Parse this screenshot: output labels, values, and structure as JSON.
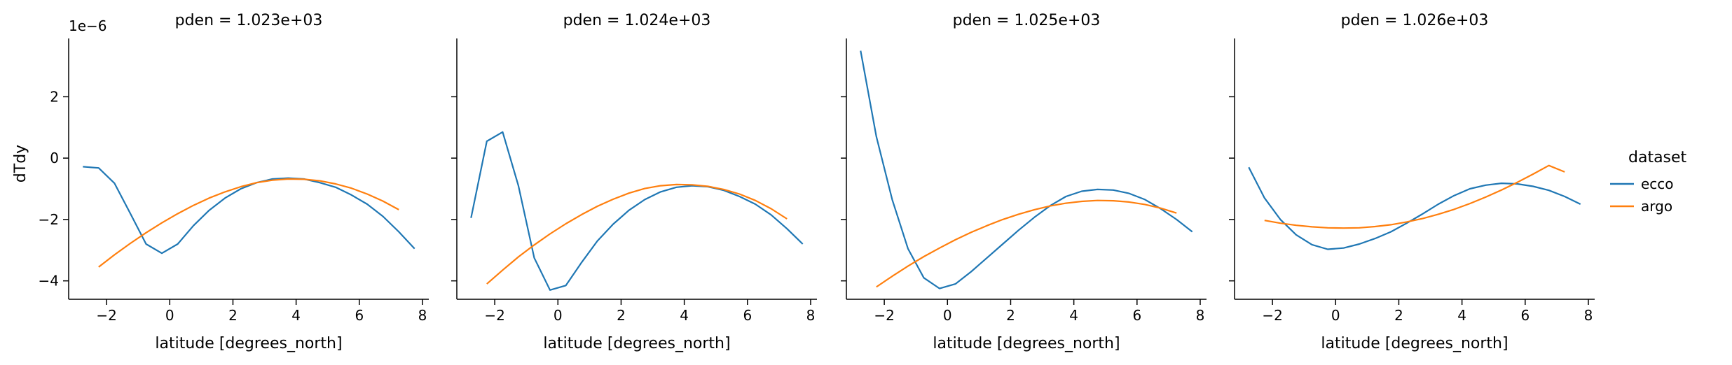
{
  "chart_data": {
    "type": "line",
    "ylabel": "dTdy",
    "y_offset_label": "1e−6",
    "ylim": [
      -4.6,
      3.9
    ],
    "yticks": [
      -4,
      -2,
      0,
      2
    ],
    "ytick_labels": [
      "−4",
      "−2",
      "0",
      "2"
    ],
    "xlim": [
      -3.2,
      8.2
    ],
    "xticks": [
      -2,
      0,
      2,
      4,
      6,
      8
    ],
    "xtick_labels": [
      "−2",
      "0",
      "2",
      "4",
      "6",
      "8"
    ],
    "legend": {
      "title": "dataset",
      "placement": "right",
      "entries": [
        {
          "name": "ecco",
          "color": "#1f77b4"
        },
        {
          "name": "argo",
          "color": "#ff7f0e"
        }
      ]
    },
    "panels": [
      {
        "title": "pden = 1.023e+03",
        "xlabel": "latitude [degrees_north]",
        "series": [
          {
            "name": "ecco",
            "color": "#1f77b4",
            "x": [
              -2.75,
              -2.25,
              -1.75,
              -1.25,
              -0.75,
              -0.25,
              0.25,
              0.75,
              1.25,
              1.75,
              2.25,
              2.75,
              3.25,
              3.75,
              4.25,
              4.75,
              5.25,
              5.75,
              6.25,
              6.75,
              7.25,
              7.75
            ],
            "y": [
              -0.28,
              -0.32,
              -0.82,
              -1.8,
              -2.8,
              -3.1,
              -2.8,
              -2.2,
              -1.7,
              -1.3,
              -1.0,
              -0.8,
              -0.68,
              -0.65,
              -0.68,
              -0.8,
              -0.95,
              -1.2,
              -1.5,
              -1.9,
              -2.4,
              -2.95
            ]
          },
          {
            "name": "argo",
            "color": "#ff7f0e",
            "x": [
              -2.25,
              -1.75,
              -1.25,
              -0.75,
              -0.25,
              0.25,
              0.75,
              1.25,
              1.75,
              2.25,
              2.75,
              3.25,
              3.75,
              4.25,
              4.75,
              5.25,
              5.75,
              6.25,
              6.75,
              7.25
            ],
            "y": [
              -3.55,
              -3.15,
              -2.78,
              -2.43,
              -2.11,
              -1.81,
              -1.54,
              -1.3,
              -1.1,
              -0.93,
              -0.8,
              -0.72,
              -0.68,
              -0.69,
              -0.74,
              -0.84,
              -0.98,
              -1.17,
              -1.4,
              -1.68
            ]
          }
        ]
      },
      {
        "title": "pden = 1.024e+03",
        "xlabel": "latitude [degrees_north]",
        "series": [
          {
            "name": "ecco",
            "color": "#1f77b4",
            "x": [
              -2.75,
              -2.25,
              -1.75,
              -1.25,
              -0.75,
              -0.25,
              0.25,
              0.75,
              1.25,
              1.75,
              2.25,
              2.75,
              3.25,
              3.75,
              4.25,
              4.75,
              5.25,
              5.75,
              6.25,
              6.75,
              7.25,
              7.75
            ],
            "y": [
              -1.95,
              0.55,
              0.85,
              -0.9,
              -3.25,
              -4.3,
              -4.15,
              -3.4,
              -2.7,
              -2.15,
              -1.7,
              -1.35,
              -1.1,
              -0.95,
              -0.9,
              -0.93,
              -1.05,
              -1.25,
              -1.5,
              -1.85,
              -2.3,
              -2.8
            ]
          },
          {
            "name": "argo",
            "color": "#ff7f0e",
            "x": [
              -2.25,
              -1.75,
              -1.25,
              -0.75,
              -0.25,
              0.25,
              0.75,
              1.25,
              1.75,
              2.25,
              2.75,
              3.25,
              3.75,
              4.25,
              4.75,
              5.25,
              5.75,
              6.25,
              6.75,
              7.25
            ],
            "y": [
              -4.1,
              -3.65,
              -3.22,
              -2.83,
              -2.47,
              -2.14,
              -1.84,
              -1.57,
              -1.34,
              -1.14,
              -0.99,
              -0.9,
              -0.86,
              -0.87,
              -0.92,
              -1.02,
              -1.17,
              -1.38,
              -1.65,
              -1.98
            ]
          }
        ]
      },
      {
        "title": "pden = 1.025e+03",
        "xlabel": "latitude [degrees_north]",
        "series": [
          {
            "name": "ecco",
            "color": "#1f77b4",
            "x": [
              -2.75,
              -2.25,
              -1.75,
              -1.25,
              -0.75,
              -0.25,
              0.25,
              0.75,
              1.25,
              1.75,
              2.25,
              2.75,
              3.25,
              3.75,
              4.25,
              4.75,
              5.25,
              5.75,
              6.25,
              6.75,
              7.25,
              7.75
            ],
            "y": [
              3.5,
              0.7,
              -1.35,
              -2.95,
              -3.9,
              -4.25,
              -4.1,
              -3.7,
              -3.25,
              -2.8,
              -2.35,
              -1.93,
              -1.55,
              -1.25,
              -1.08,
              -1.02,
              -1.04,
              -1.15,
              -1.35,
              -1.65,
              -2.0,
              -2.4
            ]
          },
          {
            "name": "argo",
            "color": "#ff7f0e",
            "x": [
              -2.25,
              -1.75,
              -1.25,
              -0.75,
              -0.25,
              0.25,
              0.75,
              1.25,
              1.75,
              2.25,
              2.75,
              3.25,
              3.75,
              4.25,
              4.75,
              5.25,
              5.75,
              6.25,
              6.75,
              7.25
            ],
            "y": [
              -4.2,
              -3.85,
              -3.52,
              -3.21,
              -2.93,
              -2.66,
              -2.42,
              -2.2,
              -2.0,
              -1.83,
              -1.68,
              -1.56,
              -1.47,
              -1.41,
              -1.38,
              -1.39,
              -1.43,
              -1.51,
              -1.63,
              -1.79
            ]
          }
        ]
      },
      {
        "title": "pden = 1.026e+03",
        "xlabel": "latitude [degrees_north]",
        "series": [
          {
            "name": "ecco",
            "color": "#1f77b4",
            "x": [
              -2.75,
              -2.25,
              -1.75,
              -1.25,
              -0.75,
              -0.25,
              0.25,
              0.75,
              1.25,
              1.75,
              2.25,
              2.75,
              3.25,
              3.75,
              4.25,
              4.75,
              5.25,
              5.75,
              6.25,
              6.75,
              7.25,
              7.75
            ],
            "y": [
              -0.3,
              -1.3,
              -2.0,
              -2.5,
              -2.82,
              -2.97,
              -2.93,
              -2.8,
              -2.62,
              -2.4,
              -2.12,
              -1.82,
              -1.5,
              -1.22,
              -1.0,
              -0.88,
              -0.82,
              -0.84,
              -0.92,
              -1.05,
              -1.25,
              -1.5
            ]
          },
          {
            "name": "argo",
            "color": "#ff7f0e",
            "x": [
              -2.25,
              -1.75,
              -1.25,
              -0.75,
              -0.25,
              0.25,
              0.75,
              1.25,
              1.75,
              2.25,
              2.75,
              3.25,
              3.75,
              4.25,
              4.75,
              5.25,
              5.75,
              6.25,
              6.75,
              7.25
            ],
            "y": [
              -2.03,
              -2.12,
              -2.19,
              -2.24,
              -2.27,
              -2.28,
              -2.27,
              -2.23,
              -2.17,
              -2.08,
              -1.97,
              -1.83,
              -1.67,
              -1.48,
              -1.27,
              -1.04,
              -0.79,
              -0.52,
              -0.24,
              -0.45
            ]
          }
        ]
      }
    ]
  }
}
